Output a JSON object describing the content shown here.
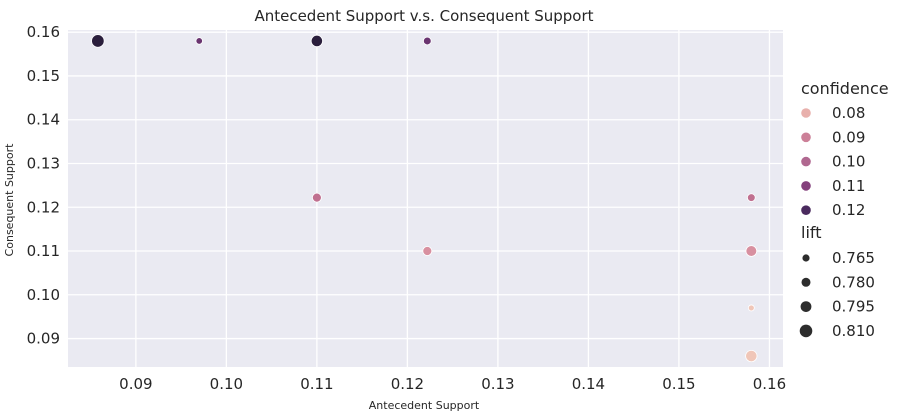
{
  "chart_data": {
    "type": "scatter",
    "title": "Antecedent Support v.s. Consequent Support",
    "xlabel": "Antecedent Support",
    "ylabel": "Consequent Support",
    "xlim": [
      0.0825,
      0.1615
    ],
    "ylim": [
      0.0835,
      0.1605
    ],
    "xticks": [
      0.09,
      0.1,
      0.11,
      0.12,
      0.13,
      0.14,
      0.15,
      0.16
    ],
    "yticks": [
      0.09,
      0.1,
      0.11,
      0.12,
      0.13,
      0.14,
      0.15,
      0.16
    ],
    "xtick_labels": [
      "0.09",
      "0.10",
      "0.11",
      "0.12",
      "0.13",
      "0.14",
      "0.15",
      "0.16"
    ],
    "ytick_labels": [
      "0.09",
      "0.10",
      "0.11",
      "0.12",
      "0.13",
      "0.14",
      "0.15",
      "0.16"
    ],
    "grid": true,
    "background_color": "#eaeaf2",
    "grid_color": "#ffffff",
    "hue_variable": "confidence",
    "size_variable": "lift",
    "points": [
      {
        "x": 0.0858,
        "y": 0.158,
        "confidence": 0.125,
        "lift": 0.81
      },
      {
        "x": 0.097,
        "y": 0.158,
        "confidence": 0.115,
        "lift": 0.76
      },
      {
        "x": 0.11,
        "y": 0.158,
        "confidence": 0.125,
        "lift": 0.8
      },
      {
        "x": 0.1222,
        "y": 0.158,
        "confidence": 0.115,
        "lift": 0.77
      },
      {
        "x": 0.11,
        "y": 0.1222,
        "confidence": 0.095,
        "lift": 0.78
      },
      {
        "x": 0.158,
        "y": 0.1222,
        "confidence": 0.095,
        "lift": 0.77
      },
      {
        "x": 0.1222,
        "y": 0.11,
        "confidence": 0.085,
        "lift": 0.78
      },
      {
        "x": 0.158,
        "y": 0.11,
        "confidence": 0.085,
        "lift": 0.795
      },
      {
        "x": 0.158,
        "y": 0.097,
        "confidence": 0.075,
        "lift": 0.755
      },
      {
        "x": 0.158,
        "y": 0.086,
        "confidence": 0.075,
        "lift": 0.8
      }
    ],
    "legend": {
      "position": "right",
      "hue_title": "confidence",
      "hue_entries": [
        {
          "label": "0.08",
          "color": "#e8b0ac"
        },
        {
          "label": "0.09",
          "color": "#cc8098"
        },
        {
          "label": "0.10",
          "color": "#b06890"
        },
        {
          "label": "0.11",
          "color": "#84407c"
        },
        {
          "label": "0.12",
          "color": "#4a2a5e"
        }
      ],
      "size_title": "lift",
      "size_entries": [
        {
          "label": "0.765",
          "value": 0.765
        },
        {
          "label": "0.780",
          "value": 0.78
        },
        {
          "label": "0.795",
          "value": 0.795
        },
        {
          "label": "0.810",
          "value": 0.81
        }
      ],
      "size_color": "#2d2d2d"
    },
    "color_scale": [
      {
        "confidence": 0.075,
        "color": "#f0c6b8"
      },
      {
        "confidence": 0.08,
        "color": "#e8b0ac"
      },
      {
        "confidence": 0.085,
        "color": "#d890a0"
      },
      {
        "confidence": 0.09,
        "color": "#cc8098"
      },
      {
        "confidence": 0.095,
        "color": "#c07090"
      },
      {
        "confidence": 0.1,
        "color": "#b06890"
      },
      {
        "confidence": 0.11,
        "color": "#84407c"
      },
      {
        "confidence": 0.115,
        "color": "#6a3470"
      },
      {
        "confidence": 0.12,
        "color": "#4a2a5e"
      },
      {
        "confidence": 0.125,
        "color": "#2a1e3c"
      }
    ]
  }
}
